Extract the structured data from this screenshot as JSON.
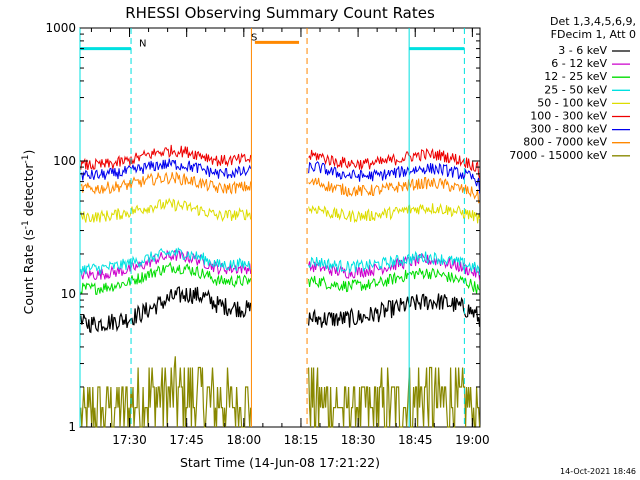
{
  "chart_data": {
    "type": "line",
    "title": "RHESSI Observing Summary Count Rates",
    "xlabel": "Start Time (14-Jun-08 17:21:22)",
    "ylabel_prefix": "Count Rate (s",
    "ylabel_sup": "-1",
    "ylabel_mid": " detector",
    "ylabel_sup2": "-1",
    "ylabel_suffix": ")",
    "y_scale": "log",
    "ylim": [
      1,
      1000
    ],
    "xlim_minutes": [
      -4.4,
      100.6
    ],
    "x_tick_labels": [
      "17:30",
      "17:45",
      "18:00",
      "18:15",
      "18:30",
      "18:45",
      "19:00"
    ],
    "x_tick_minutes": [
      8.6,
      23.6,
      38.6,
      53.6,
      68.6,
      83.6,
      98.6
    ],
    "y_tick_labels": [
      "1",
      "10",
      "100",
      "1000"
    ],
    "y_tick_values": [
      1,
      10,
      100,
      1000
    ],
    "legend_header": [
      "Det 1,3,4,5,6,9,",
      "FDecim 1, Att 0"
    ],
    "data_gap_minutes": [
      40.6,
      55.2
    ],
    "series": [
      {
        "name": "3 - 6 keV",
        "color": "#000000",
        "values": [
          6.0,
          6.0,
          6.2,
          6.5,
          7.2,
          8.3,
          9.5,
          10.0,
          9.6,
          8.2,
          6.5,
          6.5,
          6.5,
          6.7,
          7.2,
          7.8,
          8.3,
          8.7,
          8.8,
          8.3,
          7.5,
          6.8,
          6.3,
          5.7
        ]
      },
      {
        "name": "6 - 12 keV",
        "color": "#cc00cc",
        "values": [
          14.0,
          14.0,
          14.5,
          15.2,
          16.5,
          18.5,
          19.5,
          19.0,
          17.5,
          15.5,
          16.0,
          15.0,
          14.5,
          14.8,
          15.5,
          16.5,
          17.5,
          18.0,
          17.8,
          16.5,
          15.0,
          14.0,
          13.5,
          13.0
        ]
      },
      {
        "name": "12 - 25 keV",
        "color": "#00dd00",
        "values": [
          11.0,
          11.0,
          11.5,
          12.2,
          13.5,
          15.0,
          16.0,
          15.5,
          14.2,
          12.5,
          12.5,
          11.8,
          11.5,
          11.6,
          12.0,
          13.0,
          14.0,
          14.5,
          14.0,
          13.0,
          12.0,
          11.0,
          10.5,
          10.0
        ]
      },
      {
        "name": "25 - 50 keV",
        "color": "#00e0e0",
        "values": [
          15.5,
          15.5,
          16.0,
          16.8,
          18.0,
          19.5,
          20.5,
          20.0,
          18.5,
          16.5,
          17.5,
          16.5,
          16.0,
          16.2,
          16.8,
          17.5,
          18.5,
          19.0,
          18.5,
          17.5,
          16.2,
          15.5,
          15.0,
          14.5
        ]
      },
      {
        "name": "50 - 100 keV",
        "color": "#dddd00",
        "values": [
          38.0,
          38.0,
          39.0,
          41.0,
          44.0,
          46.5,
          47.0,
          45.0,
          42.0,
          38.5,
          44.0,
          40.0,
          38.5,
          38.5,
          39.5,
          41.0,
          43.0,
          44.5,
          44.0,
          42.0,
          39.5,
          37.5,
          36.0,
          34.5
        ]
      },
      {
        "name": "100 - 300 keV",
        "color": "#ee0000",
        "values": [
          93.0,
          93.0,
          95.0,
          100.0,
          108.0,
          116.0,
          120.0,
          117.0,
          110.0,
          100.0,
          110.0,
          100.0,
          96.0,
          95.0,
          97.0,
          102.0,
          108.0,
          112.0,
          111.0,
          104.0,
          96.0,
          88.0,
          83.0,
          78.0
        ]
      },
      {
        "name": "300 - 800 keV",
        "color": "#0000ee",
        "values": [
          78.0,
          78.0,
          80.0,
          83.0,
          88.0,
          93.0,
          95.0,
          92.0,
          86.0,
          80.0,
          90.0,
          82.0,
          78.0,
          77.0,
          78.0,
          81.0,
          85.0,
          88.0,
          87.0,
          82.0,
          76.0,
          71.0,
          67.0,
          63.0
        ]
      },
      {
        "name": "800 - 7000 keV",
        "color": "#ff8800",
        "values": [
          62.0,
          62.0,
          63.5,
          66.0,
          70.0,
          74.0,
          75.0,
          72.0,
          67.0,
          62.0,
          69.0,
          63.0,
          60.0,
          59.5,
          60.5,
          63.0,
          66.0,
          68.0,
          67.5,
          63.5,
          59.0,
          55.0,
          52.0,
          49.0
        ]
      },
      {
        "name": "7000 - 15000 keV",
        "color": "#888800",
        "values": [
          1.6,
          1.7,
          1.8,
          2.0,
          2.3,
          2.6,
          2.8,
          2.7,
          2.4,
          2.0,
          2.4,
          2.0,
          1.9,
          1.9,
          2.0,
          2.2,
          2.4,
          2.6,
          2.5,
          2.2,
          1.9,
          1.7,
          1.6,
          1.5
        ]
      }
    ],
    "series_x_minutes": [
      -4.0,
      0.0,
      4.0,
      8.0,
      12.0,
      16.0,
      20.0,
      24.0,
      28.0,
      32.0,
      58.0,
      62.0,
      66.0,
      70.0,
      74.0,
      78.0,
      82.0,
      86.0,
      90.0,
      94.0,
      98.0,
      100.0,
      100.3,
      100.5
    ],
    "flag_bars": [
      {
        "label": "N",
        "color": "#00e0e0",
        "y_value": 700,
        "segments": [
          [
            -4.4,
            9.0
          ],
          [
            82.0,
            96.5
          ]
        ],
        "vlines": [
          {
            "x": -4.4,
            "style": "solid"
          },
          {
            "x": 9.0,
            "style": "dashed"
          },
          {
            "x": 82.0,
            "style": "solid"
          },
          {
            "x": 96.5,
            "style": "dashed"
          }
        ]
      },
      {
        "label": "S",
        "color": "#ff8800",
        "y_value": 780,
        "segments": [
          [
            41.5,
            53.1
          ]
        ],
        "vlines": [
          {
            "x": 40.6,
            "style": "solid"
          },
          {
            "x": 55.2,
            "style": "dashed"
          }
        ]
      }
    ],
    "timestamp": "14-Oct-2021 18:46"
  }
}
